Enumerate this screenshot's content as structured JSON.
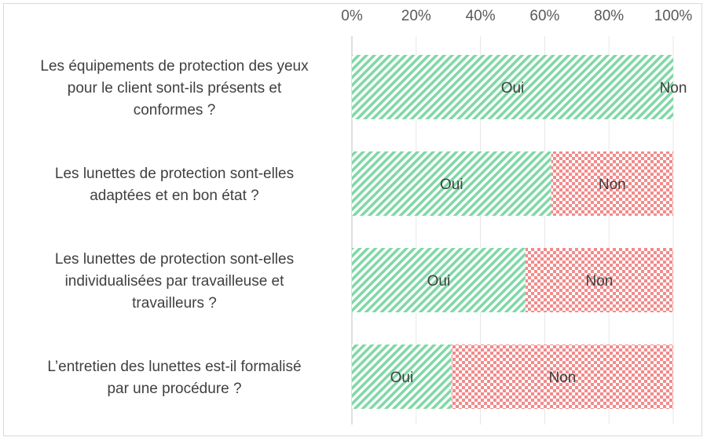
{
  "chart_data": {
    "type": "bar",
    "orientation": "horizontal",
    "stacked": "percent",
    "xlim": [
      0,
      100
    ],
    "x_ticks": [
      "0%",
      "20%",
      "40%",
      "60%",
      "80%",
      "100%"
    ],
    "categories": [
      [
        "Les équipements de protection des yeux",
        "pour le client sont-ils présents et",
        "conformes ?"
      ],
      [
        "Les lunettes de protection sont-elles",
        "adaptées et en bon état ?"
      ],
      [
        "Les lunettes de protection sont-elles",
        "individualisées par travailleuse et",
        "travailleurs ?"
      ],
      [
        "L’entretien des lunettes est-il formalisé",
        "par une procédure ?"
      ]
    ],
    "series": [
      {
        "name": "Oui",
        "values": [
          100,
          62,
          54,
          31
        ],
        "color": "#7fd8a6",
        "pattern": "diagonal-stripes"
      },
      {
        "name": "Non",
        "values": [
          0,
          38,
          46,
          69
        ],
        "color": "#f28b8b",
        "pattern": "checker"
      }
    ],
    "data_labels": [
      [
        "Oui",
        "Non"
      ],
      [
        "Oui",
        "Non"
      ],
      [
        "Oui",
        "Non"
      ],
      [
        "Oui",
        "Non"
      ]
    ],
    "grid": "vertical",
    "x_axis_position": "top"
  }
}
